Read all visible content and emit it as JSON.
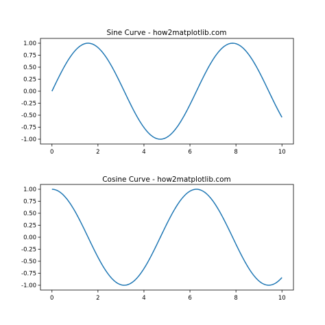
{
  "chart_data": [
    {
      "type": "line",
      "title": "Sine Curve - how2matplotlib.com",
      "xlabel": "",
      "ylabel": "",
      "xlim": [
        -0.5,
        10.5
      ],
      "ylim": [
        -1.1,
        1.1
      ],
      "x_ticks": [
        0,
        2,
        4,
        6,
        8,
        10
      ],
      "x_tick_labels": [
        "0",
        "2",
        "4",
        "6",
        "8",
        "10"
      ],
      "y_ticks": [
        1.0,
        0.75,
        0.5,
        0.25,
        0.0,
        -0.25,
        -0.5,
        -0.75,
        -1.0
      ],
      "y_tick_labels": [
        "1.00",
        "0.75",
        "0.50",
        "0.25",
        "0.00",
        "-0.25",
        "-0.50",
        "-0.75",
        "-1.00"
      ],
      "grid": false,
      "series": [
        {
          "function": "sin",
          "x_range": [
            0,
            10
          ],
          "color": "#1f77b4",
          "x": [
            0,
            0.5,
            1,
            1.5708,
            2,
            2.5,
            3,
            3.5,
            4,
            4.7124,
            5,
            5.5,
            6,
            6.5,
            7,
            7.854,
            8.5,
            9,
            9.5,
            10
          ],
          "values": [
            0,
            0.479,
            0.841,
            1.0,
            0.909,
            0.598,
            0.141,
            -0.351,
            -0.757,
            -1.0,
            -0.959,
            -0.706,
            -0.279,
            0.215,
            0.657,
            1.0,
            0.798,
            0.412,
            -0.075,
            -0.544
          ]
        }
      ]
    },
    {
      "type": "line",
      "title": "Cosine Curve - how2matplotlib.com",
      "xlabel": "",
      "ylabel": "",
      "xlim": [
        -0.5,
        10.5
      ],
      "ylim": [
        -1.1,
        1.1
      ],
      "x_ticks": [
        0,
        2,
        4,
        6,
        8,
        10
      ],
      "x_tick_labels": [
        "0",
        "2",
        "4",
        "6",
        "8",
        "10"
      ],
      "y_ticks": [
        1.0,
        0.75,
        0.5,
        0.25,
        0.0,
        -0.25,
        -0.5,
        -0.75,
        -1.0
      ],
      "y_tick_labels": [
        "1.00",
        "0.75",
        "0.50",
        "0.25",
        "0.00",
        "-0.25",
        "-0.50",
        "-0.75",
        "-1.00"
      ],
      "grid": false,
      "series": [
        {
          "function": "cos",
          "x_range": [
            0,
            10
          ],
          "color": "#1f77b4",
          "x": [
            0,
            0.5,
            1,
            1.5,
            2,
            2.5,
            3.1416,
            3.5,
            4,
            4.5,
            5,
            5.5,
            6.2832,
            6.5,
            7,
            7.5,
            8,
            8.5,
            9.4248,
            10
          ],
          "values": [
            1.0,
            0.878,
            0.54,
            0.071,
            -0.416,
            -0.801,
            -1.0,
            -0.936,
            -0.654,
            -0.211,
            0.284,
            0.709,
            1.0,
            0.977,
            0.754,
            0.347,
            -0.146,
            -0.602,
            -1.0,
            -0.839
          ]
        }
      ]
    }
  ]
}
